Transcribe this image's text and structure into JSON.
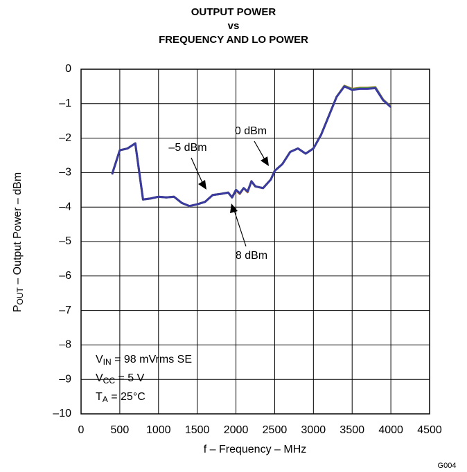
{
  "chart_data": {
    "type": "line",
    "title": [
      "OUTPUT POWER",
      "vs",
      "FREQUENCY AND LO POWER"
    ],
    "xlabel": "f – Frequency – MHz",
    "ylabel": {
      "main": "P",
      "sub": "OUT",
      "rest": " – Output Power – dBm"
    },
    "figure_id": "G004",
    "conditions": [
      {
        "main": "V",
        "sub": "IN",
        "rest": " = 98 mVrms SE"
      },
      {
        "main": "V",
        "sub": "CC",
        "rest": " = 5 V"
      },
      {
        "main": "T",
        "sub": "A",
        "rest": " = 25°C"
      }
    ],
    "x": [
      400,
      500,
      600,
      700,
      800,
      900,
      1000,
      1100,
      1200,
      1300,
      1400,
      1500,
      1600,
      1700,
      1800,
      1900,
      1950,
      2000,
      2050,
      2100,
      2150,
      2200,
      2250,
      2350,
      2450,
      2500,
      2600,
      2700,
      2800,
      2900,
      3000,
      3100,
      3200,
      3300,
      3400,
      3500,
      3600,
      3700,
      3800,
      3900,
      4000
    ],
    "series": [
      {
        "name": "8 dBm",
        "color": "#c8782e",
        "values": [
          -3.05,
          -2.35,
          -2.3,
          -2.15,
          -3.78,
          -3.75,
          -3.7,
          -3.72,
          -3.7,
          -3.88,
          -3.97,
          -3.92,
          -3.85,
          -3.65,
          -3.62,
          -3.58,
          -3.72,
          -3.52,
          -3.62,
          -3.45,
          -3.57,
          -3.25,
          -3.4,
          -3.45,
          -3.2,
          -2.95,
          -2.75,
          -2.4,
          -2.3,
          -2.45,
          -2.3,
          -1.9,
          -1.35,
          -0.8,
          -0.48,
          -0.57,
          -0.54,
          -0.54,
          -0.52,
          -0.88,
          -1.08
        ]
      },
      {
        "name": "0 dBm",
        "color": "#5a9a3a",
        "values": [
          -3.05,
          -2.35,
          -2.3,
          -2.15,
          -3.78,
          -3.75,
          -3.7,
          -3.72,
          -3.7,
          -3.88,
          -3.97,
          -3.92,
          -3.85,
          -3.65,
          -3.62,
          -3.58,
          -3.72,
          -3.5,
          -3.6,
          -3.45,
          -3.55,
          -3.25,
          -3.4,
          -3.45,
          -3.2,
          -2.95,
          -2.75,
          -2.4,
          -2.3,
          -2.45,
          -2.3,
          -1.9,
          -1.35,
          -0.8,
          -0.49,
          -0.58,
          -0.55,
          -0.55,
          -0.53,
          -0.89,
          -1.09
        ]
      },
      {
        "name": "–5 dBm",
        "color": "#3a3aa0",
        "values": [
          -3.05,
          -2.35,
          -2.3,
          -2.15,
          -3.78,
          -3.75,
          -3.7,
          -3.72,
          -3.7,
          -3.88,
          -3.97,
          -3.92,
          -3.85,
          -3.65,
          -3.62,
          -3.58,
          -3.72,
          -3.5,
          -3.6,
          -3.45,
          -3.55,
          -3.25,
          -3.4,
          -3.45,
          -3.2,
          -2.95,
          -2.75,
          -2.4,
          -2.3,
          -2.45,
          -2.3,
          -1.9,
          -1.35,
          -0.8,
          -0.5,
          -0.6,
          -0.57,
          -0.57,
          -0.55,
          -0.9,
          -1.1
        ]
      }
    ],
    "xlim": [
      0,
      4500
    ],
    "xticks": [
      0,
      500,
      1000,
      1500,
      2000,
      2500,
      3000,
      3500,
      4000,
      4500
    ],
    "ylim": [
      -10,
      0
    ],
    "yticks": [
      {
        "value": -10,
        "label": "–10"
      },
      {
        "value": -9,
        "label": "–9"
      },
      {
        "value": -8,
        "label": "–8"
      },
      {
        "value": -7,
        "label": "–7"
      },
      {
        "value": -6,
        "label": "–6"
      },
      {
        "value": -5,
        "label": "–5"
      },
      {
        "value": -4,
        "label": "–4"
      },
      {
        "value": -3,
        "label": "–3"
      },
      {
        "value": -2,
        "label": "–2"
      },
      {
        "value": -1,
        "label": "–1"
      },
      0
    ],
    "grid": true
  }
}
